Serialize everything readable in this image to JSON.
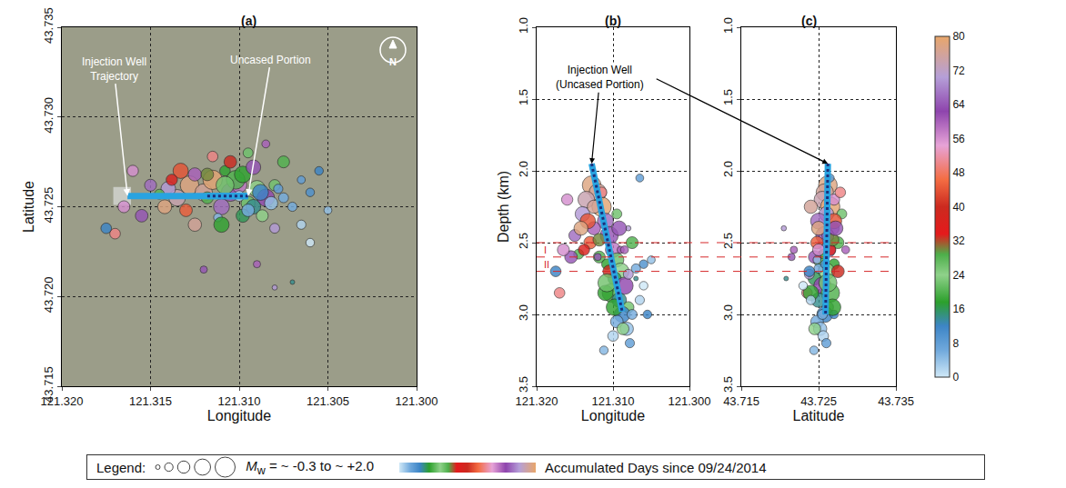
{
  "chart_data": [
    {
      "type": "scatter",
      "title": "(a)",
      "x_label": "Longitude",
      "y_label": "Latitude",
      "x_field": "longitude",
      "y_field": "latitude",
      "grid": true,
      "marker": "circle",
      "xlim": [
        121.32,
        121.3
      ],
      "xticks": [
        {
          "value": 121.32,
          "label": "121.320"
        },
        121.315,
        {
          "value": 121.31,
          "label": "121.310"
        },
        121.305,
        {
          "value": 121.3,
          "label": "121.300"
        }
      ],
      "ylim": [
        43.715,
        43.735
      ],
      "yticks": [
        43.715,
        {
          "value": 43.72,
          "label": "43.720"
        },
        43.725,
        {
          "value": 43.73,
          "label": "43.730"
        },
        43.735
      ],
      "well": {
        "x": [
          121.3163,
          121.3095
        ],
        "y": [
          43.7256,
          43.7256
        ]
      },
      "uncased": {
        "x": [
          121.3118,
          121.3095
        ],
        "y": [
          43.7256,
          43.7256
        ]
      },
      "well_label": "Injection Well Trajectory",
      "uncased_label": "Uncased Portion",
      "north": "N"
    },
    {
      "type": "scatter",
      "title": "(b)",
      "x_label": "Longitude",
      "y_label": "Depth (km)",
      "x_field": "longitude",
      "y_field": "depth",
      "grid": true,
      "marker": "circle",
      "xlim": [
        121.32,
        121.3
      ],
      "xticks": [
        {
          "value": 121.32,
          "label": "121.320"
        },
        {
          "value": 121.31,
          "label": "121.310"
        },
        {
          "value": 121.3,
          "label": "121.300"
        }
      ],
      "ylim": [
        3.5,
        1.0
      ],
      "yticks": [
        {
          "value": 1.0,
          "label": "1.0"
        },
        1.5,
        {
          "value": 2.0,
          "label": "2.0"
        },
        2.5,
        {
          "value": 3.0,
          "label": "3.0"
        },
        3.5
      ],
      "uncased": {
        "x": [
          121.3128,
          121.3088
        ],
        "y": [
          1.95,
          2.98
        ]
      },
      "well_label": "Injection Well (Uncased Portion)",
      "zones": {
        "bounds": [
          2.5,
          2.6,
          2.7
        ],
        "labels": [
          "I",
          "II"
        ]
      }
    },
    {
      "type": "scatter",
      "title": "(c)",
      "x_label": "Latitude",
      "x_field": "latitude",
      "y_field": "depth",
      "grid": true,
      "marker": "circle",
      "xlim": [
        43.715,
        43.735
      ],
      "xticks": [
        43.715,
        43.725,
        43.735
      ],
      "ylim": [
        3.5,
        1.0
      ],
      "yticks": [
        {
          "value": 1.0,
          "label": "1.0"
        },
        1.5,
        {
          "value": 2.0,
          "label": "2.0"
        },
        2.5,
        {
          "value": 3.0,
          "label": "3.0"
        },
        3.5
      ],
      "uncased": {
        "x": [
          43.7262,
          43.7259
        ],
        "y": [
          1.95,
          3.0
        ]
      }
    }
  ],
  "events": {
    "longitude": [
      121.3128,
      121.312,
      121.3135,
      121.3115,
      121.314,
      121.311,
      121.3125,
      121.3105,
      121.313,
      121.31,
      121.3118,
      121.3095,
      121.3108,
      121.3145,
      121.309,
      121.3098,
      121.3085,
      121.3102,
      121.3092,
      121.308,
      121.3088,
      121.3095,
      121.3082,
      121.31,
      121.3078,
      121.3112,
      121.315,
      121.316,
      121.317,
      121.3155,
      121.308,
      121.307,
      121.306,
      121.305,
      121.3055,
      121.3065,
      121.309,
      121.308,
      121.307,
      121.312,
      121.311,
      121.3075,
      121.3095,
      121.3085,
      121.3105,
      121.3115,
      121.3125,
      121.3133,
      121.3138,
      121.3098,
      121.3087,
      121.3075,
      121.3108,
      121.3142,
      121.3118,
      121.3065,
      121.306,
      121.3175,
      121.3165,
      121.3092
    ],
    "latitude": [
      43.7262,
      43.7258,
      43.7255,
      43.7265,
      43.726,
      43.725,
      43.7268,
      43.7258,
      43.7248,
      43.7262,
      43.7255,
      43.7252,
      43.727,
      43.7257,
      43.726,
      43.7245,
      43.7255,
      43.7265,
      43.725,
      43.7262,
      43.7258,
      43.7248,
      43.7252,
      43.7256,
      43.726,
      43.7244,
      43.7262,
      43.727,
      43.7235,
      43.7245,
      43.7238,
      43.725,
      43.7258,
      43.7248,
      43.727,
      43.7265,
      43.7218,
      43.7205,
      43.7208,
      43.7215,
      43.724,
      43.7275,
      43.728,
      43.7285,
      43.7275,
      43.7278,
      43.724,
      43.727,
      43.7265,
      43.7268,
      43.7245,
      43.7255,
      43.7262,
      43.725,
      43.7268,
      43.724,
      43.723,
      43.7238,
      43.725,
      43.7272
    ],
    "depth": [
      2.1,
      2.15,
      2.2,
      2.25,
      2.3,
      2.35,
      2.4,
      2.45,
      2.5,
      2.55,
      2.6,
      2.62,
      2.65,
      2.58,
      2.7,
      2.75,
      2.8,
      2.85,
      2.9,
      2.95,
      3.0,
      3.05,
      3.1,
      3.15,
      3.2,
      3.25,
      2.45,
      2.2,
      2.85,
      2.6,
      2.72,
      2.68,
      2.65,
      2.62,
      3.0,
      2.05,
      2.55,
      2.4,
      2.75,
      2.6,
      2.85,
      2.5,
      2.3,
      2.55,
      2.7,
      2.15,
      2.25,
      2.35,
      2.55,
      2.95,
      3.1,
      3.0,
      2.78,
      2.4,
      2.48,
      2.9,
      2.8,
      2.7,
      2.55,
      2.4
    ],
    "mw": [
      1.8,
      1.6,
      1.5,
      1.9,
      1.2,
      1.4,
      1.0,
      1.7,
      0.9,
      1.3,
      0.8,
      1.1,
      0.6,
      0.5,
      1.5,
      1.0,
      1.6,
      1.8,
      1.2,
      0.7,
      1.4,
      0.9,
      1.0,
      0.6,
      0.4,
      0.3,
      0.8,
      0.7,
      0.6,
      0.9,
      0.5,
      0.4,
      0.3,
      0.2,
      0.3,
      0.2,
      0.1,
      -0.2,
      -0.3,
      0.1,
      1.3,
      0.8,
      0.5,
      0.2,
      0.9,
      0.6,
      1.0,
      1.3,
      0.7,
      1.5,
      0.8,
      0.5,
      1.7,
      1.1,
      0.9,
      0.4,
      0.3,
      0.6,
      0.8,
      1.2
    ],
    "days": [
      78,
      76,
      74,
      79,
      70,
      66,
      60,
      64,
      45,
      58,
      20,
      22,
      18,
      28,
      24,
      16,
      62,
      20,
      14,
      26,
      12,
      6,
      4,
      2,
      8,
      5,
      66,
      56,
      50,
      64,
      70,
      6,
      10,
      4,
      12,
      8,
      60,
      70,
      14,
      64,
      18,
      20,
      22,
      60,
      40,
      50,
      76,
      44,
      36,
      18,
      24,
      6,
      26,
      78,
      30,
      2,
      0,
      12,
      56,
      64
    ]
  },
  "colorbar": {
    "range": [
      0,
      80
    ],
    "ticks": [
      0,
      8,
      16,
      24,
      32,
      40,
      48,
      56,
      64,
      72,
      80
    ]
  },
  "legend_box": {
    "title": "Legend:",
    "size_legend": {
      "symbol": "M",
      "subscript": "w",
      "text": " = ~ -0.3 to ~ +2.0",
      "range": [
        -0.3,
        2.0
      ]
    },
    "color_legend": {
      "text": "Accumulated Days since 09/24/2014"
    }
  }
}
